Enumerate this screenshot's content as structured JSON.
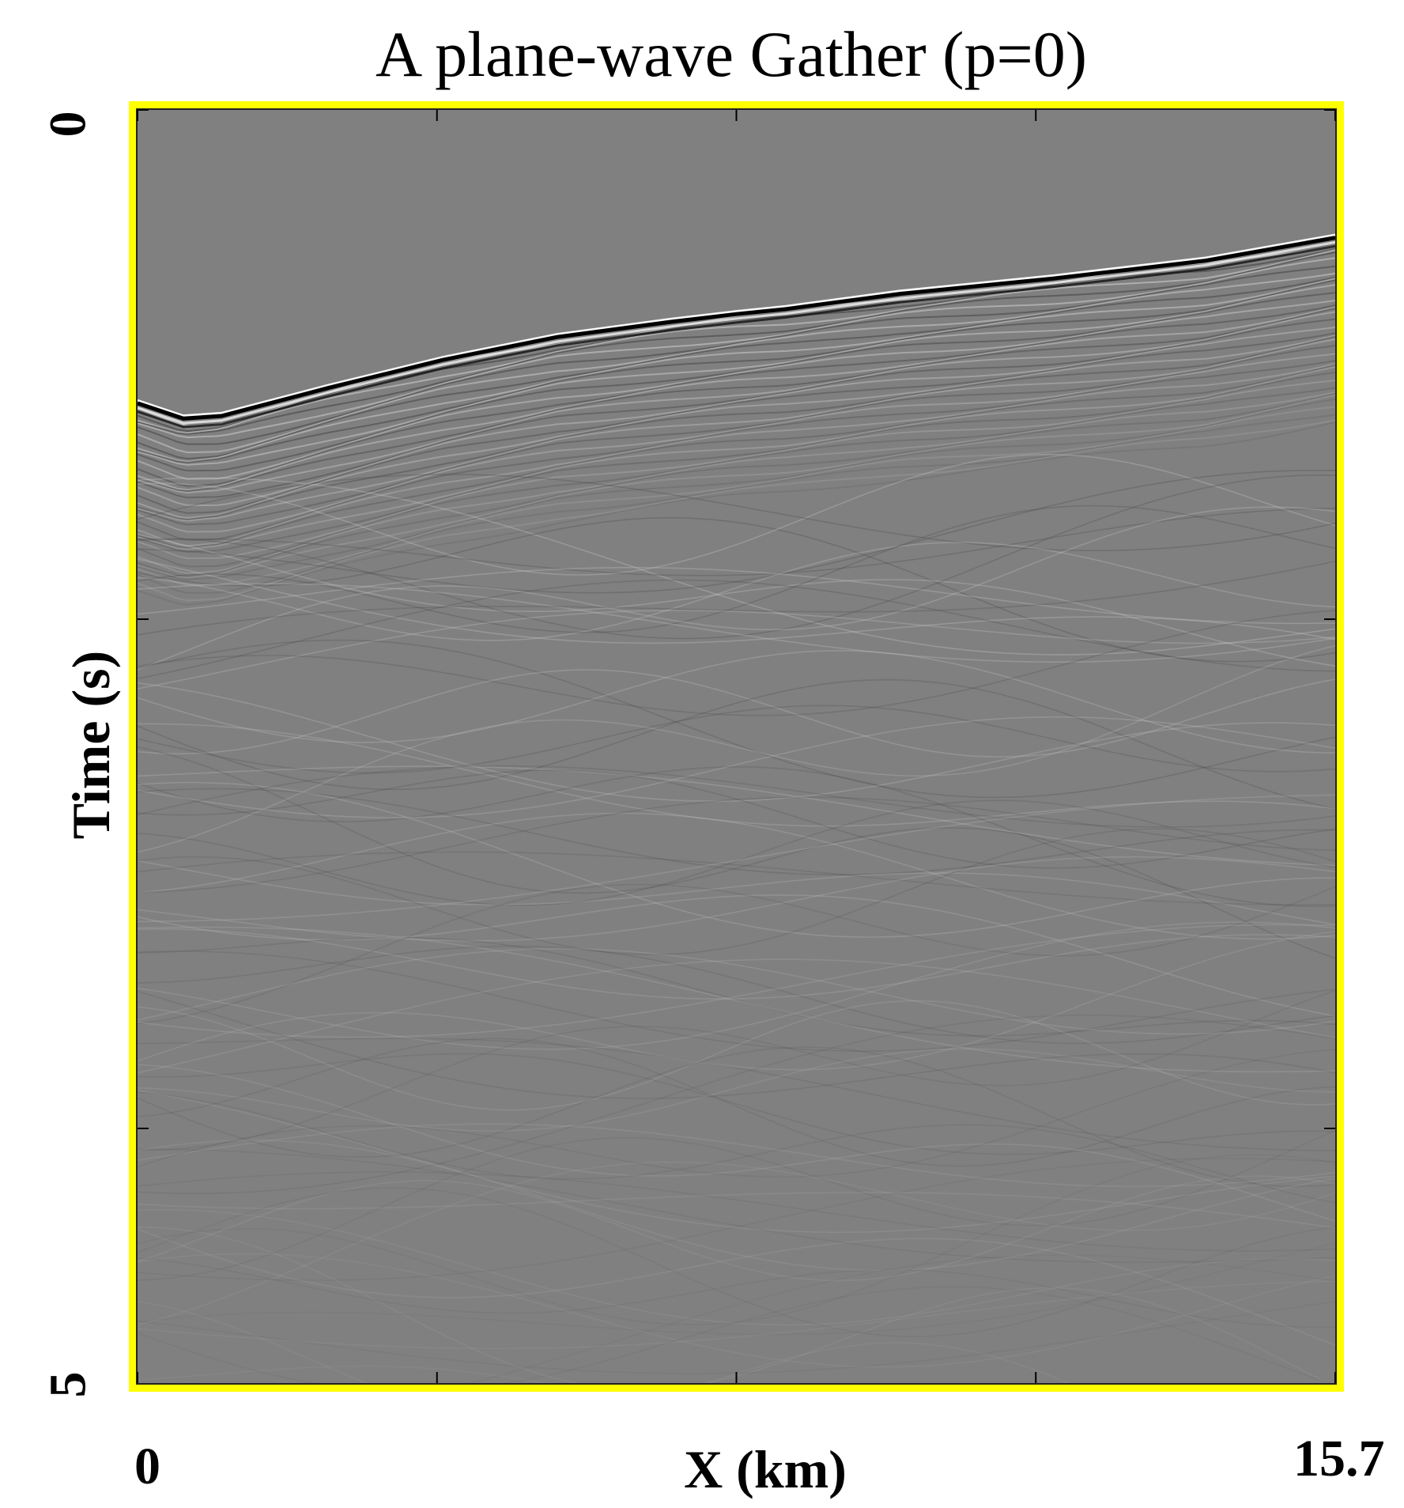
{
  "chart_data": {
    "type": "heatmap",
    "title": "A plane-wave Gather (p=0)",
    "xlabel": "X (km)",
    "ylabel": "Time (s)",
    "xlim": [
      0,
      15.7
    ],
    "ylim": [
      0,
      5
    ],
    "y_inverted": true,
    "x_tick_labels": [
      "0",
      "15.7"
    ],
    "y_tick_labels": [
      "0",
      "5"
    ],
    "x_ticks": [
      0,
      3.925,
      7.85,
      11.775,
      15.7
    ],
    "y_ticks": [
      0,
      2,
      4
    ],
    "colormap": "gray",
    "frame_color": "#ffff00",
    "background_color": "#808080",
    "water_bottom_horizon": {
      "x": [
        0,
        0.6,
        1.1,
        2.5,
        4.0,
        5.5,
        7.0,
        7.85,
        8.5,
        10.0,
        12.0,
        14.0,
        15.7
      ],
      "t": [
        1.14,
        1.2,
        1.19,
        1.08,
        0.97,
        0.88,
        0.82,
        0.79,
        0.77,
        0.71,
        0.65,
        0.58,
        0.49
      ]
    }
  }
}
